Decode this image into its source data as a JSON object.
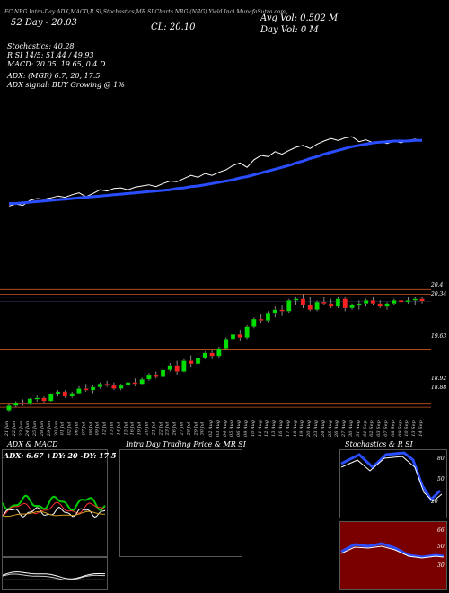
{
  "header": {
    "title_line": "EC NRG Intra-Day ADX,MACD,R        SI,Stochastics,MR        SI Charts NRG        (NRG) Yield Inc) MunafaSutra.com",
    "price_52d": "52 Day - 20.03",
    "close_label": "CL: 20.10",
    "avg_vol": "Avg Vol: 0.502  M",
    "day_vol": "Day Vol: 0   M"
  },
  "indicators": {
    "stochastics": "Stochastics: 40.28",
    "rsi": "R       SI 14/5: 51.44 / 49.93",
    "macd": "MACD: 20.05,  19.65, 0.4  D",
    "adx": "ADX:                           (MGR) 6.7,  20,  17.5",
    "adx_signal": "ADX  signal:                            BUY Growing @ 1%"
  },
  "price_axis": {
    "labels": [
      "20.4",
      "20.34",
      "19.63",
      "18.92",
      "18.88"
    ]
  },
  "date_labels": [
    "21 Jun",
    "22 Jun",
    "23 Jun",
    "24 Jun",
    "25 Jun",
    "28 Jun",
    "29 Jun",
    "30 Jun",
    "01 Jul",
    "02 Jul",
    "06 Jul",
    "07 Jul",
    "08 Jul",
    "09 Jul",
    "12 Jul",
    "13 Jul",
    "14 Jul",
    "15 Jul",
    "16 Jul",
    "19 Jul",
    "20 Jul",
    "21 Jul",
    "22 Jul",
    "23 Jul",
    "26 Jul",
    "27 Jul",
    "28 Jul",
    "29 Jul",
    "30 Jul",
    "02 Aug",
    "03 Aug",
    "04 Aug",
    "05 Aug",
    "06 Aug",
    "09 Aug",
    "10 Aug",
    "11 Aug",
    "12 Aug",
    "13 Aug",
    "16 Aug",
    "17 Aug",
    "18 Aug",
    "19 Aug",
    "20 Aug",
    "23 Aug",
    "24 Aug",
    "25 Aug",
    "26 Aug",
    "27 Aug",
    "30 Aug",
    "31 Aug",
    "01 Sep",
    "02 Sep",
    "03 Sep",
    "07 Sep",
    "08 Sep",
    "09 Sep",
    "10 Sep",
    "13 Sep",
    "14 Sep"
  ],
  "panels": {
    "adx_title": "ADX  & MACD",
    "adx_values": "ADX: 6.67  +DY: 20  -DY: 17.5",
    "mrsi_title": "Intra  Day Trading Price  & MR               SI",
    "stoch_title": "Stochastics & R               SI",
    "stoch_ticks": [
      "80",
      "50",
      "20"
    ],
    "rsi_ticks": [
      "66",
      "50",
      "30"
    ]
  },
  "colors": {
    "background": "#000000",
    "up_candle": "#00dd00",
    "down_candle": "#ff2020",
    "ema_line": "#2a4dff",
    "price_line": "#ffffff",
    "level_line": "#cc5522"
  },
  "chart_data": {
    "type": "candlestick",
    "title": "NRG Yield Inc",
    "close_line": [
      19.21,
      19.24,
      19.22,
      19.3,
      19.33,
      19.32,
      19.34,
      19.37,
      19.35,
      19.39,
      19.42,
      19.36,
      19.41,
      19.47,
      19.45,
      19.49,
      19.5,
      19.47,
      19.51,
      19.53,
      19.55,
      19.52,
      19.57,
      19.61,
      19.6,
      19.65,
      19.7,
      19.67,
      19.73,
      19.7,
      19.75,
      19.79,
      19.86,
      19.9,
      19.83,
      19.95,
      20.02,
      20.0,
      20.08,
      20.04,
      20.1,
      20.15,
      20.18,
      20.13,
      20.2,
      20.25,
      20.29,
      20.26,
      20.3,
      20.32,
      20.24,
      20.27,
      20.22,
      20.24,
      20.21,
      20.25,
      20.22,
      20.26,
      20.28,
      20.25
    ],
    "ema_line": [
      19.25,
      19.25,
      19.26,
      19.27,
      19.28,
      19.29,
      19.3,
      19.31,
      19.32,
      19.33,
      19.34,
      19.35,
      19.36,
      19.37,
      19.38,
      19.39,
      19.4,
      19.41,
      19.42,
      19.43,
      19.44,
      19.45,
      19.46,
      19.47,
      19.49,
      19.5,
      19.52,
      19.53,
      19.55,
      19.57,
      19.59,
      19.61,
      19.63,
      19.66,
      19.68,
      19.71,
      19.74,
      19.77,
      19.8,
      19.83,
      19.86,
      19.9,
      19.93,
      19.97,
      20.0,
      20.04,
      20.07,
      20.1,
      20.13,
      20.16,
      20.18,
      20.2,
      20.22,
      20.23,
      20.24,
      20.25,
      20.25,
      20.25,
      20.26,
      20.26
    ],
    "ohlc": [
      [
        18.84,
        18.92,
        18.82,
        18.9
      ],
      [
        18.9,
        18.96,
        18.88,
        18.94
      ],
      [
        18.94,
        18.98,
        18.9,
        18.92
      ],
      [
        18.92,
        19.0,
        18.91,
        18.99
      ],
      [
        18.99,
        19.03,
        18.95,
        19.0
      ],
      [
        19.0,
        19.02,
        18.94,
        18.96
      ],
      [
        18.96,
        19.06,
        18.95,
        19.05
      ],
      [
        19.05,
        19.1,
        19.02,
        19.08
      ],
      [
        19.08,
        19.1,
        19.0,
        19.02
      ],
      [
        19.02,
        19.08,
        19.0,
        19.06
      ],
      [
        19.06,
        19.15,
        19.05,
        19.12
      ],
      [
        19.12,
        19.18,
        19.08,
        19.1
      ],
      [
        19.1,
        19.16,
        19.06,
        19.14
      ],
      [
        19.14,
        19.2,
        19.12,
        19.18
      ],
      [
        19.18,
        19.22,
        19.14,
        19.16
      ],
      [
        19.16,
        19.2,
        19.1,
        19.12
      ],
      [
        19.12,
        19.18,
        19.1,
        19.16
      ],
      [
        19.16,
        19.22,
        19.12,
        19.2
      ],
      [
        19.2,
        19.25,
        19.15,
        19.18
      ],
      [
        19.18,
        19.26,
        19.16,
        19.24
      ],
      [
        19.24,
        19.32,
        19.22,
        19.3
      ],
      [
        19.3,
        19.34,
        19.25,
        19.27
      ],
      [
        19.27,
        19.38,
        19.26,
        19.36
      ],
      [
        19.36,
        19.45,
        19.34,
        19.42
      ],
      [
        19.42,
        19.48,
        19.3,
        19.34
      ],
      [
        19.34,
        19.5,
        19.33,
        19.48
      ],
      [
        19.48,
        19.55,
        19.4,
        19.44
      ],
      [
        19.44,
        19.55,
        19.42,
        19.52
      ],
      [
        19.52,
        19.6,
        19.5,
        19.58
      ],
      [
        19.58,
        19.62,
        19.5,
        19.54
      ],
      [
        19.54,
        19.66,
        19.52,
        19.64
      ],
      [
        19.64,
        19.78,
        19.62,
        19.76
      ],
      [
        19.76,
        19.84,
        19.7,
        19.82
      ],
      [
        19.82,
        19.88,
        19.74,
        19.78
      ],
      [
        19.78,
        19.94,
        19.76,
        19.92
      ],
      [
        19.92,
        20.04,
        19.9,
        20.02
      ],
      [
        20.02,
        20.08,
        19.96,
        20.0
      ],
      [
        20.0,
        20.12,
        19.98,
        20.1
      ],
      [
        20.1,
        20.18,
        20.04,
        20.14
      ],
      [
        20.14,
        20.2,
        20.06,
        20.12
      ],
      [
        20.12,
        20.28,
        20.1,
        20.26
      ],
      [
        20.26,
        20.3,
        20.2,
        20.28
      ],
      [
        20.28,
        20.34,
        20.16,
        20.2
      ],
      [
        20.2,
        20.3,
        20.12,
        20.14
      ],
      [
        20.14,
        20.26,
        20.12,
        20.24
      ],
      [
        20.24,
        20.3,
        20.2,
        20.22
      ],
      [
        20.22,
        20.28,
        20.16,
        20.18
      ],
      [
        20.18,
        20.3,
        20.16,
        20.28
      ],
      [
        20.28,
        20.3,
        20.12,
        20.16
      ],
      [
        20.16,
        20.22,
        20.14,
        20.2
      ],
      [
        20.2,
        20.26,
        20.14,
        20.22
      ],
      [
        20.22,
        20.28,
        20.18,
        20.26
      ],
      [
        20.26,
        20.3,
        20.2,
        20.22
      ],
      [
        20.22,
        20.26,
        20.16,
        20.18
      ],
      [
        20.18,
        20.24,
        20.14,
        20.22
      ],
      [
        20.22,
        20.28,
        20.2,
        20.26
      ],
      [
        20.26,
        20.28,
        20.2,
        20.24
      ],
      [
        20.24,
        20.3,
        20.22,
        20.26
      ],
      [
        20.26,
        20.3,
        20.2,
        20.28
      ],
      [
        20.28,
        20.3,
        20.22,
        20.25
      ]
    ],
    "ylim": [
      18.8,
      20.45
    ]
  }
}
